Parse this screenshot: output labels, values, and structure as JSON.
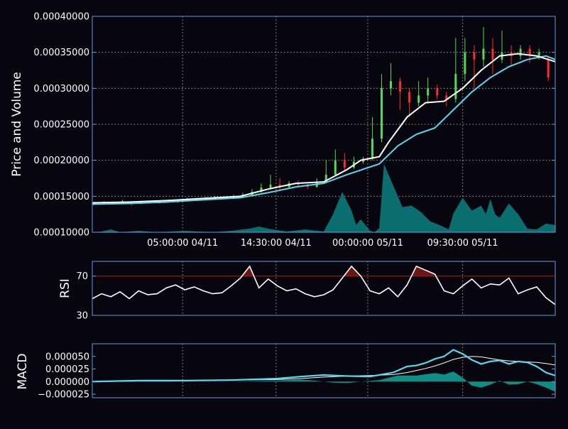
{
  "colors": {
    "background": "#07060f",
    "frame": "#5e9be0",
    "grid": "#a0a0a0",
    "up_candle": "#53d85a",
    "down_candle": "#ff2a2a",
    "ma_short": "#ffffff",
    "ma_long": "#5ad8ee",
    "volume_fill": "#0b6e6e",
    "rsi_line": "#ffffff",
    "rsi_threshold": "#b01818",
    "rsi_fill": "#6a1616",
    "macd_line": "#5ad8ee",
    "signal_line": "#ffffff",
    "hist_fill": "#0e8f86"
  },
  "chart_data": [
    {
      "type": "candlestick",
      "ylabel": "Price and Volume",
      "ylim": [
        0.0001,
        0.0004
      ],
      "yticks": [
        "0.00010000",
        "0.00015000",
        "0.00020000",
        "0.00025000",
        "0.00030000",
        "0.00035000",
        "0.00040000"
      ],
      "xlim": [
        0,
        100
      ],
      "xticks": [
        {
          "x": 19.5,
          "label": "05:00:00 04/11"
        },
        {
          "x": 39.7,
          "label": "14:30:00 04/11"
        },
        {
          "x": 59.5,
          "label": "00:00:00 05/11"
        },
        {
          "x": 80.0,
          "label": "09:30:00 05/11"
        }
      ],
      "grid": true,
      "candles": [
        [
          0.5,
          0.00014,
          0.000141,
          0.000139,
          0.000142
        ],
        [
          2.5,
          0.000141,
          0.000142,
          0.00014,
          0.000143
        ],
        [
          4.5,
          0.000142,
          0.00014,
          0.000139,
          0.000143
        ],
        [
          6.5,
          0.00014,
          0.000143,
          0.000139,
          0.000145
        ],
        [
          8.5,
          0.000141,
          0.00014,
          0.000137,
          0.000142
        ],
        [
          10.5,
          0.00014,
          0.000142,
          0.000139,
          0.000143
        ],
        [
          12.5,
          0.000142,
          0.000141,
          0.00014,
          0.000144
        ],
        [
          14.5,
          0.000141,
          0.000143,
          0.00014,
          0.000144
        ],
        [
          16.5,
          0.000143,
          0.000142,
          0.000141,
          0.000145
        ],
        [
          18.5,
          0.000142,
          0.000144,
          0.000141,
          0.000146
        ],
        [
          20.5,
          0.000144,
          0.000146,
          0.000143,
          0.000148
        ],
        [
          22.5,
          0.000146,
          0.000145,
          0.000144,
          0.000148
        ],
        [
          24.5,
          0.000145,
          0.000147,
          0.000144,
          0.000149
        ],
        [
          26.5,
          0.000147,
          0.000148,
          0.000146,
          0.00015
        ],
        [
          28.5,
          0.000148,
          0.000147,
          0.000146,
          0.00015
        ],
        [
          30.5,
          0.000147,
          0.00015,
          0.000146,
          0.000152
        ],
        [
          32.5,
          0.00015,
          0.000152,
          0.000149,
          0.000155
        ],
        [
          34.5,
          0.000152,
          0.000156,
          0.000151,
          0.00016
        ],
        [
          36.5,
          0.000156,
          0.000162,
          0.000155,
          0.000168
        ],
        [
          38.5,
          0.000162,
          0.000166,
          0.00016,
          0.00018
        ],
        [
          40.5,
          0.000166,
          0.000163,
          0.000158,
          0.000175
        ],
        [
          42.5,
          0.000163,
          0.000168,
          0.000161,
          0.000171
        ],
        [
          44.5,
          0.000168,
          0.000166,
          0.000162,
          0.000172
        ],
        [
          46.5,
          0.000166,
          0.000163,
          0.00016,
          0.000168
        ],
        [
          48.5,
          0.000163,
          0.00017,
          0.000162,
          0.000175
        ],
        [
          50.5,
          0.00017,
          0.00018,
          0.000168,
          0.0002
        ],
        [
          52.5,
          0.00018,
          0.0002,
          0.000178,
          0.000215
        ],
        [
          54.5,
          0.0002,
          0.00019,
          0.000185,
          0.00021
        ],
        [
          56.5,
          0.00019,
          0.000198,
          0.000188,
          0.000205
        ],
        [
          58.5,
          0.000198,
          0.000202,
          0.000195,
          0.000205
        ],
        [
          60.5,
          0.000202,
          0.00023,
          0.0002,
          0.00026
        ],
        [
          62.5,
          0.00023,
          0.0003,
          0.000225,
          0.00032
        ],
        [
          64.5,
          0.0003,
          0.00031,
          0.00029,
          0.000335
        ],
        [
          66.5,
          0.00031,
          0.000295,
          0.00027,
          0.000315
        ],
        [
          68.5,
          0.000295,
          0.00028,
          0.00026,
          0.0003
        ],
        [
          70.5,
          0.00028,
          0.00029,
          0.000275,
          0.00031
        ],
        [
          72.5,
          0.00029,
          0.0003,
          0.00028,
          0.000315
        ],
        [
          74.5,
          0.0003,
          0.00029,
          0.000285,
          0.000305
        ],
        [
          76.5,
          0.00029,
          0.000285,
          0.000275,
          0.000295
        ],
        [
          78.5,
          0.000285,
          0.00032,
          0.00028,
          0.00037
        ],
        [
          80.5,
          0.00032,
          0.00035,
          0.00031,
          0.00037
        ],
        [
          82.5,
          0.00035,
          0.00034,
          0.0003,
          0.00036
        ],
        [
          84.5,
          0.00034,
          0.000355,
          0.00033,
          0.000385
        ],
        [
          86.5,
          0.000355,
          0.00034,
          0.00032,
          0.00037
        ],
        [
          88.5,
          0.00034,
          0.00035,
          0.000335,
          0.00038
        ],
        [
          90.5,
          0.00035,
          0.000345,
          0.00033,
          0.00036
        ],
        [
          92.5,
          0.000345,
          0.000355,
          0.00034,
          0.00036
        ],
        [
          94.5,
          0.000355,
          0.000345,
          0.000335,
          0.00036
        ],
        [
          96.5,
          0.000345,
          0.00035,
          0.00034,
          0.000355
        ],
        [
          98.5,
          0.00034,
          0.000315,
          0.00031,
          0.000345
        ]
      ],
      "ma_short": [
        [
          0,
          0.000141
        ],
        [
          8,
          0.000142
        ],
        [
          16,
          0.000144
        ],
        [
          24,
          0.000147
        ],
        [
          32,
          0.00015
        ],
        [
          38,
          0.00016
        ],
        [
          44,
          0.000168
        ],
        [
          50,
          0.00017
        ],
        [
          55,
          0.000187
        ],
        [
          58,
          0.0002
        ],
        [
          62,
          0.000205
        ],
        [
          64,
          0.000225
        ],
        [
          68,
          0.00026
        ],
        [
          72,
          0.00028
        ],
        [
          76,
          0.000282
        ],
        [
          80,
          0.0003
        ],
        [
          84,
          0.000325
        ],
        [
          88,
          0.000345
        ],
        [
          92,
          0.000348
        ],
        [
          96,
          0.000345
        ],
        [
          100,
          0.000337
        ]
      ],
      "ma_long": [
        [
          0,
          0.000139
        ],
        [
          8,
          0.00014
        ],
        [
          16,
          0.000142
        ],
        [
          24,
          0.000145
        ],
        [
          32,
          0.000148
        ],
        [
          38,
          0.000155
        ],
        [
          44,
          0.000163
        ],
        [
          50,
          0.000168
        ],
        [
          55,
          0.00018
        ],
        [
          62,
          0.000195
        ],
        [
          66,
          0.00022
        ],
        [
          70,
          0.000236
        ],
        [
          74,
          0.000245
        ],
        [
          78,
          0.00027
        ],
        [
          82,
          0.000295
        ],
        [
          86,
          0.000315
        ],
        [
          90,
          0.00033
        ],
        [
          94,
          0.00034
        ],
        [
          98,
          0.000345
        ],
        [
          100,
          0.00034
        ]
      ],
      "volume_area": [
        [
          0,
          0.0001
        ],
        [
          2,
          0.000101
        ],
        [
          4,
          0.000104
        ],
        [
          6,
          0.0001
        ],
        [
          10,
          0.000102
        ],
        [
          14,
          0.0001
        ],
        [
          20,
          0.000102
        ],
        [
          26,
          0.0001
        ],
        [
          30,
          0.000102
        ],
        [
          34,
          0.000105
        ],
        [
          36,
          0.000108
        ],
        [
          38,
          0.000105
        ],
        [
          42,
          0.000101
        ],
        [
          46,
          0.000104
        ],
        [
          50,
          0.000101
        ],
        [
          52,
          0.000125
        ],
        [
          54,
          0.000156
        ],
        [
          56,
          0.00013
        ],
        [
          57,
          0.00011
        ],
        [
          58,
          0.000118
        ],
        [
          60,
          0.000102
        ],
        [
          61,
          0.0001
        ],
        [
          62,
          0.000106
        ],
        [
          63,
          0.000195
        ],
        [
          65,
          0.000165
        ],
        [
          67,
          0.000135
        ],
        [
          69,
          0.000137
        ],
        [
          71,
          0.000128
        ],
        [
          73,
          0.000115
        ],
        [
          75,
          0.00011
        ],
        [
          77,
          0.000104
        ],
        [
          78,
          0.000126
        ],
        [
          80,
          0.000148
        ],
        [
          82,
          0.00013
        ],
        [
          84,
          0.000137
        ],
        [
          85,
          0.000125
        ],
        [
          86,
          0.000146
        ],
        [
          87,
          0.000125
        ],
        [
          88,
          0.00012
        ],
        [
          90,
          0.00014
        ],
        [
          92,
          0.000125
        ],
        [
          94,
          0.000105
        ],
        [
          96,
          0.000104
        ],
        [
          98,
          0.000112
        ],
        [
          100,
          0.00011
        ]
      ]
    },
    {
      "type": "line",
      "ylabel": "RSI",
      "ylim": [
        30,
        85
      ],
      "yticks": [
        "30",
        "70"
      ],
      "threshold": 70,
      "x": [
        0,
        2,
        4,
        6,
        8,
        10,
        12,
        14,
        16,
        18,
        20,
        22,
        24,
        26,
        28,
        30,
        32,
        34,
        36,
        38,
        40,
        42,
        44,
        46,
        48,
        50,
        52,
        54,
        56,
        58,
        60,
        62,
        64,
        66,
        68,
        70,
        72,
        74,
        76,
        78,
        80,
        82,
        84,
        86,
        88,
        90,
        92,
        94,
        96,
        98,
        100
      ],
      "values": [
        47,
        52,
        49,
        54,
        47,
        55,
        51,
        52,
        58,
        61,
        56,
        59,
        55,
        52,
        53,
        60,
        68,
        80,
        58,
        67,
        60,
        55,
        57,
        52,
        49,
        51,
        56,
        68,
        80,
        70,
        55,
        52,
        58,
        49,
        61,
        80,
        76,
        72,
        55,
        52,
        60,
        67,
        58,
        62,
        61,
        68,
        52,
        56,
        59,
        48,
        41
      ]
    },
    {
      "type": "line",
      "ylabel": "MACD",
      "ylim": [
        -3.2e-05,
        7.5e-05
      ],
      "yticks": [
        "−0.000025",
        "0.000000",
        "0.000025",
        "0.000050"
      ],
      "x": [
        0,
        10,
        20,
        30,
        40,
        45,
        50,
        55,
        60,
        65,
        68,
        70,
        72,
        74,
        76,
        78,
        80,
        82,
        84,
        86,
        88,
        90,
        92,
        94,
        96,
        98,
        100
      ],
      "macd": [
        0,
        2e-06,
        2e-06,
        3e-06,
        6e-06,
        1e-05,
        1.3e-05,
        1.1e-05,
        1e-05,
        1.8e-05,
        3e-05,
        3.2e-05,
        3.7e-05,
        4.5e-05,
        5e-05,
        6.3e-05,
        5.5e-05,
        4.3e-05,
        3.5e-05,
        4e-05,
        4.2e-05,
        3.5e-05,
        4e-05,
        3.8e-05,
        3e-05,
        1.8e-05,
        1.2e-05
      ],
      "signal": [
        0,
        1e-06,
        2e-06,
        3e-06,
        4e-06,
        6e-06,
        9e-06,
        1.1e-05,
        1.2e-05,
        1.4e-05,
        1.8e-05,
        2.2e-05,
        2.6e-05,
        3.1e-05,
        3.7e-05,
        4.4e-05,
        4.8e-05,
        5e-05,
        4.9e-05,
        4.6e-05,
        4.3e-05,
        4.1e-05,
        4e-05,
        3.9e-05,
        3.8e-05,
        3.6e-05,
        3.3e-05
      ],
      "histogram": [
        [
          0,
          0
        ],
        [
          10,
          1e-06
        ],
        [
          20,
          0
        ],
        [
          30,
          0
        ],
        [
          40,
          2e-06
        ],
        [
          45,
          4e-06
        ],
        [
          48,
          2e-06
        ],
        [
          52,
          -2e-06
        ],
        [
          55,
          -3e-06
        ],
        [
          58,
          0
        ],
        [
          62,
          3e-06
        ],
        [
          66,
          1.2e-05
        ],
        [
          70,
          1.2e-05
        ],
        [
          74,
          1.7e-05
        ],
        [
          76,
          1.4e-05
        ],
        [
          78,
          2e-05
        ],
        [
          80,
          8e-06
        ],
        [
          82,
          -8e-06
        ],
        [
          84,
          -1.2e-05
        ],
        [
          86,
          -6e-06
        ],
        [
          88,
          2e-06
        ],
        [
          90,
          -6e-06
        ],
        [
          92,
          -5e-06
        ],
        [
          94,
          0
        ],
        [
          96,
          -5e-06
        ],
        [
          98,
          -1.2e-05
        ],
        [
          100,
          -2e-05
        ]
      ]
    }
  ]
}
